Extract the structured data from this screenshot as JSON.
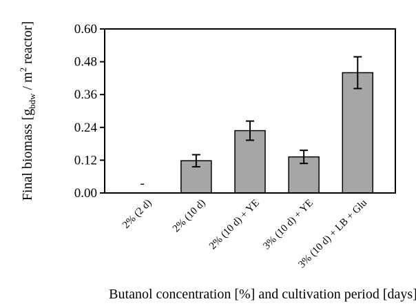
{
  "chart_data": {
    "type": "bar",
    "categories": [
      "2% (2 d)",
      "2% (10 d)",
      "2% (10 d) + YE",
      "3% (10 d) + YE",
      "3% (10 d) + LB + Glu"
    ],
    "values": [
      0.0,
      0.118,
      0.228,
      0.132,
      0.44
    ],
    "error": [
      0,
      0.022,
      0.035,
      0.024,
      0.058
    ],
    "annotations": [
      {
        "category": "2% (2 d)",
        "text": "-"
      }
    ],
    "xlabel": "Butanol concentration [%] and cultivation period [days]",
    "ylabel": {
      "prefix": "Final biomass [g",
      "sub": "bdw",
      "middle": " / m",
      "sup": "2",
      "suffix": " reactor]"
    },
    "ylim": [
      0,
      0.6
    ],
    "yticks": [
      "0.00",
      "0.12",
      "0.24",
      "0.36",
      "0.48",
      "0.60"
    ],
    "grid": false,
    "bar_color": "#a6a6a6",
    "edge_color": "#000000"
  }
}
